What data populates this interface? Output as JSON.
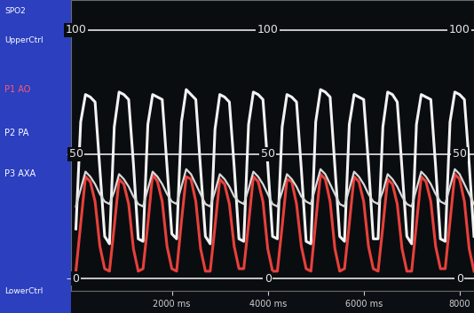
{
  "chart_data": {
    "type": "line",
    "x": [
      0,
      100,
      200,
      300,
      400,
      500,
      600,
      700,
      800,
      900,
      1000,
      1100,
      1200,
      1300,
      1400,
      1500,
      1600,
      1700,
      1800,
      1900,
      2000,
      2100,
      2200,
      2300,
      2400,
      2500,
      2600,
      2700,
      2800,
      2900,
      3000,
      3100,
      3200,
      3300,
      3400,
      3500,
      3600,
      3700,
      3800,
      3900,
      4000,
      4100,
      4200,
      4300,
      4400,
      4500,
      4600,
      4700,
      4800,
      4900,
      5000,
      5100,
      5200,
      5300,
      5400,
      5500,
      5600,
      5700,
      5800,
      5900,
      6000,
      6100,
      6200,
      6300,
      6400,
      6500,
      6600,
      6700,
      6800,
      6900,
      7000,
      7100,
      7200,
      7300,
      7400,
      7500,
      7600,
      7700,
      7800,
      7900,
      8000,
      8100,
      8200,
      8300
    ],
    "series": [
      {
        "name": "P1 AO",
        "color": "#f2f2f2",
        "values": [
          20,
          63,
          74,
          73,
          71,
          44,
          17,
          14,
          61,
          75,
          74,
          72,
          46,
          16,
          15,
          62,
          74,
          73,
          72,
          45,
          18,
          16,
          63,
          76,
          74,
          72,
          44,
          17,
          14,
          60,
          74,
          73,
          71,
          45,
          16,
          15,
          62,
          75,
          74,
          72,
          46,
          17,
          16,
          61,
          74,
          73,
          71,
          44,
          15,
          14,
          63,
          76,
          75,
          73,
          45,
          17,
          15,
          62,
          74,
          73,
          72,
          46,
          16,
          16,
          61,
          75,
          74,
          71,
          44,
          17,
          14,
          62,
          74,
          73,
          72,
          45,
          16,
          15,
          63,
          75,
          74,
          72,
          46,
          17
        ]
      },
      {
        "name": "P2 PA",
        "color": "#e8403a",
        "values": [
          3,
          22,
          41,
          39,
          31,
          13,
          4,
          3,
          21,
          40,
          38,
          30,
          12,
          3,
          4,
          22,
          42,
          39,
          31,
          13,
          4,
          3,
          23,
          41,
          40,
          31,
          12,
          3,
          3,
          21,
          40,
          38,
          30,
          13,
          4,
          4,
          22,
          41,
          39,
          31,
          12,
          3,
          3,
          21,
          40,
          39,
          30,
          13,
          4,
          3,
          23,
          42,
          40,
          31,
          12,
          3,
          4,
          22,
          41,
          39,
          31,
          13,
          4,
          3,
          21,
          40,
          38,
          30,
          12,
          3,
          3,
          22,
          41,
          39,
          31,
          13,
          4,
          4,
          23,
          42,
          40,
          31,
          12,
          3
        ]
      },
      {
        "name": "P3 AXA",
        "color": "#d9d9d9",
        "values": [
          29,
          36,
          43,
          41,
          38,
          34,
          31,
          30,
          35,
          42,
          40,
          37,
          33,
          30,
          29,
          36,
          43,
          41,
          38,
          34,
          31,
          30,
          37,
          44,
          42,
          38,
          34,
          30,
          29,
          35,
          42,
          40,
          37,
          33,
          31,
          30,
          36,
          43,
          41,
          38,
          34,
          30,
          29,
          35,
          42,
          40,
          37,
          33,
          31,
          30,
          37,
          44,
          42,
          38,
          34,
          30,
          29,
          36,
          43,
          41,
          38,
          34,
          31,
          30,
          35,
          42,
          40,
          37,
          33,
          30,
          29,
          36,
          43,
          41,
          38,
          34,
          31,
          30,
          37,
          44,
          42,
          38,
          34,
          30
        ]
      }
    ],
    "xlim": [
      -100,
      8300
    ],
    "ylim": [
      -5,
      112
    ],
    "xticks": [
      {
        "value": 2000,
        "label": "2000 ms"
      },
      {
        "value": 4000,
        "label": "4000 ms"
      },
      {
        "value": 6000,
        "label": "6000 ms"
      },
      {
        "value": 8000,
        "label": "8000"
      }
    ],
    "yticks": [
      0,
      50,
      100
    ],
    "tick_labels": "x",
    "grid": true,
    "annotations": [
      {
        "x": 0,
        "y": 100,
        "text": "100"
      },
      {
        "x": 4000,
        "y": 100,
        "text": "100"
      },
      {
        "x": 8000,
        "y": 100,
        "text": "100"
      },
      {
        "x": 0,
        "y": 50,
        "text": "50"
      },
      {
        "x": 4000,
        "y": 50,
        "text": "50"
      },
      {
        "x": 8000,
        "y": 50,
        "text": "50"
      },
      {
        "x": 0,
        "y": 0,
        "text": "0"
      },
      {
        "x": 4000,
        "y": 0,
        "text": "0"
      },
      {
        "x": 8000,
        "y": 0,
        "text": "0"
      }
    ]
  },
  "monitor": {
    "top_labels": [
      "SPO2",
      "UpperCtrl"
    ],
    "bottom_labels": [
      "LowerCtrl"
    ]
  }
}
